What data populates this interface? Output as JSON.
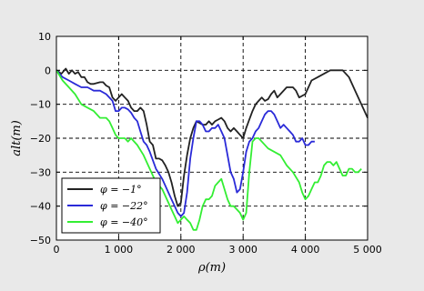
{
  "chart_data": {
    "type": "line",
    "xlabel": "ρ(m)",
    "ylabel": "alt(m)",
    "xlim": [
      0,
      5000
    ],
    "ylim": [
      -50,
      10
    ],
    "x_ticks": [
      0,
      1000,
      2000,
      3000,
      4000,
      5000
    ],
    "x_tick_labels": [
      "0",
      "1 000",
      "2 000",
      "3 000",
      "4 000",
      "5 000"
    ],
    "y_ticks": [
      10,
      0,
      -10,
      -20,
      -30,
      -40,
      -50
    ],
    "y_tick_labels": [
      "10",
      "0",
      "−10",
      "−20",
      "−30",
      "−40",
      "−50"
    ],
    "grid": true,
    "legend_position": "bottom-left",
    "series": [
      {
        "name": "φ = −1°",
        "color": "#222222",
        "x": [
          0,
          80,
          150,
          200,
          250,
          300,
          350,
          400,
          450,
          500,
          550,
          600,
          700,
          750,
          800,
          850,
          900,
          950,
          1000,
          1050,
          1100,
          1150,
          1200,
          1250,
          1300,
          1350,
          1400,
          1450,
          1500,
          1550,
          1600,
          1650,
          1700,
          1750,
          1800,
          1850,
          1900,
          1950,
          2000,
          2050,
          2100,
          2150,
          2200,
          2250,
          2300,
          2350,
          2400,
          2450,
          2500,
          2550,
          2600,
          2650,
          2700,
          2750,
          2800,
          2850,
          2900,
          2950,
          3000,
          3050,
          3100,
          3150,
          3200,
          3250,
          3300,
          3350,
          3400,
          3450,
          3500,
          3550,
          3600,
          3700,
          3800,
          3850,
          3900,
          4000,
          4100,
          4200,
          4300,
          4400,
          4500,
          4600,
          4700,
          4800,
          4900,
          5000
        ],
        "y": [
          0,
          -1,
          0.5,
          -1,
          0,
          -1,
          -0.5,
          -2,
          -2,
          -3.5,
          -4,
          -4,
          -3.5,
          -3.5,
          -4.5,
          -5,
          -8,
          -9,
          -8,
          -7,
          -8,
          -9,
          -11,
          -12,
          -12,
          -11,
          -12,
          -16,
          -21,
          -22,
          -26,
          -26,
          -26.5,
          -28,
          -30,
          -33,
          -37,
          -40,
          -39,
          -31,
          -25,
          -20,
          -17,
          -15,
          -15.5,
          -16,
          -16,
          -15,
          -16,
          -15,
          -14.5,
          -14,
          -15,
          -17,
          -18,
          -17,
          -18,
          -19,
          -20,
          -17,
          -14.5,
          -12,
          -10,
          -9,
          -8,
          -9,
          -8.5,
          -7,
          -6,
          -8,
          -7,
          -5,
          -5,
          -6,
          -8,
          -7,
          -3,
          -2,
          -1,
          0,
          0,
          0,
          -2,
          -6,
          -10,
          -14
        ]
      },
      {
        "name": "φ = −22°",
        "color": "#2a2ad8",
        "x": [
          0,
          100,
          200,
          300,
          400,
          500,
          600,
          700,
          800,
          900,
          950,
          1000,
          1050,
          1100,
          1150,
          1200,
          1250,
          1300,
          1350,
          1400,
          1450,
          1500,
          1600,
          1700,
          1800,
          1850,
          1900,
          1950,
          2000,
          2050,
          2100,
          2150,
          2200,
          2250,
          2300,
          2350,
          2400,
          2450,
          2500,
          2550,
          2600,
          2650,
          2700,
          2750,
          2800,
          2850,
          2900,
          2950,
          3000,
          3050,
          3100,
          3150,
          3200,
          3250,
          3300,
          3350,
          3400,
          3450,
          3500,
          3550,
          3600,
          3650,
          3700,
          3750,
          3800,
          3850,
          3900,
          3950,
          4000,
          4050,
          4100,
          4150
        ],
        "y": [
          0,
          -2,
          -3,
          -4,
          -5,
          -5,
          -6,
          -6,
          -7,
          -9,
          -12,
          -12,
          -11,
          -11,
          -11.5,
          -12.5,
          -14,
          -15,
          -18,
          -21,
          -22,
          -24,
          -29,
          -32,
          -36,
          -38,
          -40,
          -42,
          -43,
          -42,
          -36,
          -26,
          -20,
          -15,
          -15,
          -16,
          -18,
          -18,
          -17,
          -17,
          -16,
          -18,
          -20,
          -25,
          -30,
          -32,
          -36,
          -35,
          -30,
          -24,
          -21,
          -20,
          -18,
          -17,
          -15,
          -13,
          -12,
          -12,
          -13,
          -15,
          -17,
          -16,
          -17,
          -18,
          -19,
          -21,
          -21,
          -20,
          -22,
          -22,
          -21,
          -21
        ]
      },
      {
        "name": "φ = −40°",
        "color": "#33ee33",
        "x": [
          0,
          100,
          200,
          300,
          400,
          500,
          600,
          700,
          800,
          850,
          900,
          950,
          1000,
          1050,
          1100,
          1150,
          1200,
          1300,
          1400,
          1500,
          1600,
          1700,
          1800,
          1850,
          1900,
          1950,
          2000,
          2050,
          2100,
          2150,
          2200,
          2250,
          2300,
          2350,
          2400,
          2450,
          2500,
          2550,
          2600,
          2650,
          2700,
          2750,
          2800,
          2850,
          2900,
          2950,
          3000,
          3050,
          3100,
          3150,
          3200,
          3250,
          3300,
          3400,
          3500,
          3600,
          3700,
          3800,
          3900,
          3950,
          4000,
          4050,
          4100,
          4150,
          4200,
          4250,
          4300,
          4350,
          4400,
          4450,
          4500,
          4550,
          4600,
          4650,
          4700,
          4750,
          4800,
          4850,
          4900
        ],
        "y": [
          0,
          -3,
          -5,
          -7,
          -10,
          -11,
          -12,
          -14,
          -14,
          -15,
          -17,
          -19,
          -20,
          -20,
          -20,
          -21,
          -20,
          -22,
          -25,
          -29,
          -33,
          -35,
          -39,
          -41,
          -43,
          -45,
          -44,
          -43,
          -44,
          -45,
          -47,
          -47,
          -44,
          -40,
          -38,
          -38,
          -37,
          -34,
          -33,
          -32,
          -35,
          -38,
          -40,
          -40,
          -41,
          -42,
          -44,
          -42,
          -30,
          -21,
          -20,
          -20,
          -21,
          -23,
          -24,
          -25,
          -28,
          -30,
          -33,
          -36,
          -38,
          -37,
          -35,
          -33,
          -33,
          -31,
          -28,
          -27,
          -27,
          -28,
          -27,
          -29,
          -31,
          -31,
          -29,
          -29,
          -30,
          -30,
          -29
        ]
      }
    ]
  }
}
